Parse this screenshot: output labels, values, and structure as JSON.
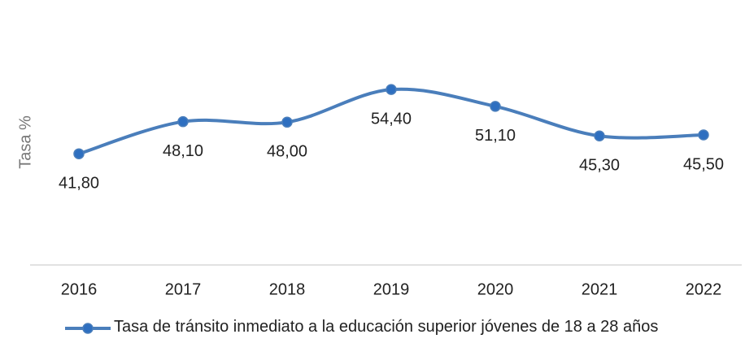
{
  "chart_data": {
    "type": "line",
    "y_label": "Tasa %",
    "categories": [
      "2016",
      "2017",
      "2018",
      "2019",
      "2020",
      "2021",
      "2022"
    ],
    "series": [
      {
        "name": "Tasa de tránsito inmediato a la educación superior jóvenes de 18 a 28 años",
        "color": "#4a7ebb",
        "values": [
          41.8,
          48.1,
          48.0,
          54.4,
          51.1,
          45.3,
          45.5
        ],
        "value_labels": [
          "41,80",
          "48,10",
          "48,00",
          "54,40",
          "51,10",
          "45,30",
          "45,50"
        ]
      }
    ],
    "ylim": [
      20,
      60
    ],
    "smooth": true,
    "legend": "bottom"
  }
}
